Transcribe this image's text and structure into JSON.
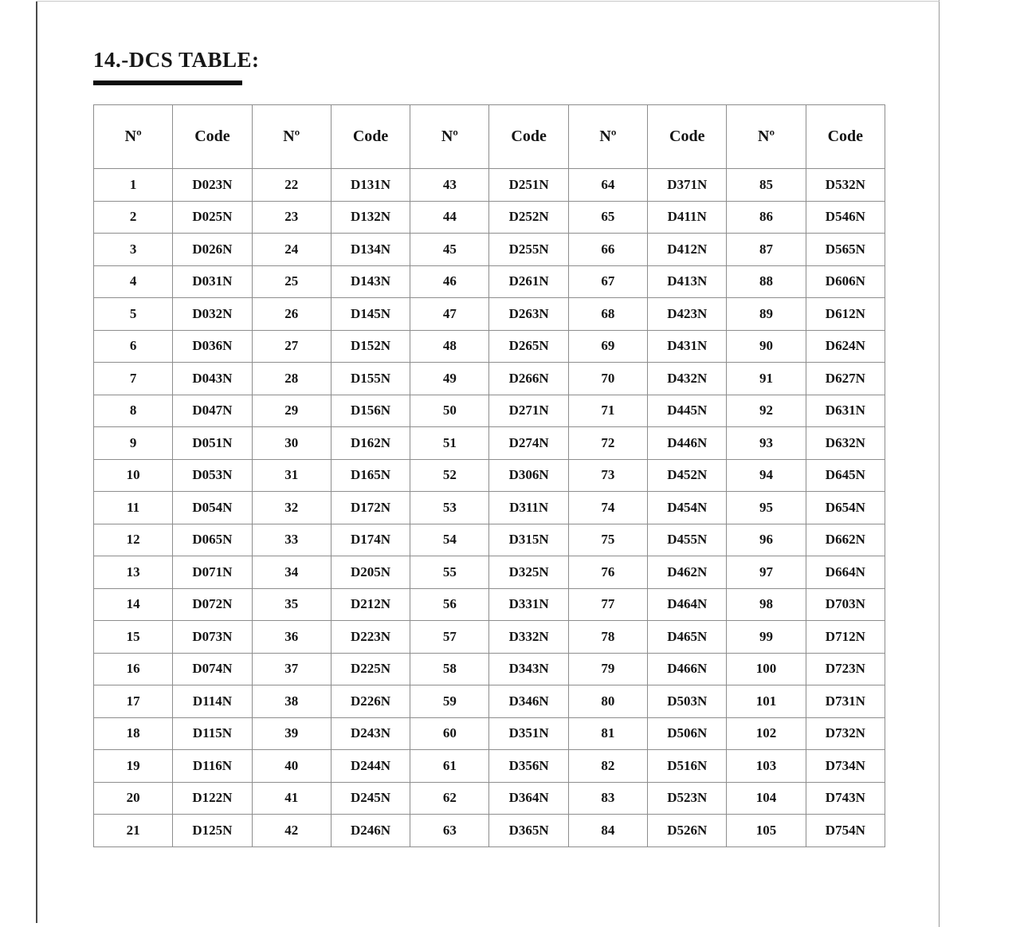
{
  "page": {
    "title": "14.-DCS TABLE:"
  },
  "colors": {
    "text": "#141414",
    "table_border": "#8d8d8d",
    "title_underline": "#0d0d0d",
    "page_border_left": "#4a4a4a",
    "page_border_right": "#9b9b9b"
  },
  "table": {
    "column_headers": [
      "Nº",
      "Code",
      "Nº",
      "Code",
      "Nº",
      "Code",
      "Nº",
      "Code",
      "Nº",
      "Code"
    ],
    "rows": [
      [
        "1",
        "D023N",
        "22",
        "D131N",
        "43",
        "D251N",
        "64",
        "D371N",
        "85",
        "D532N"
      ],
      [
        "2",
        "D025N",
        "23",
        "D132N",
        "44",
        "D252N",
        "65",
        "D411N",
        "86",
        "D546N"
      ],
      [
        "3",
        "D026N",
        "24",
        "D134N",
        "45",
        "D255N",
        "66",
        "D412N",
        "87",
        "D565N"
      ],
      [
        "4",
        "D031N",
        "25",
        "D143N",
        "46",
        "D261N",
        "67",
        "D413N",
        "88",
        "D606N"
      ],
      [
        "5",
        "D032N",
        "26",
        "D145N",
        "47",
        "D263N",
        "68",
        "D423N",
        "89",
        "D612N"
      ],
      [
        "6",
        "D036N",
        "27",
        "D152N",
        "48",
        "D265N",
        "69",
        "D431N",
        "90",
        "D624N"
      ],
      [
        "7",
        "D043N",
        "28",
        "D155N",
        "49",
        "D266N",
        "70",
        "D432N",
        "91",
        "D627N"
      ],
      [
        "8",
        "D047N",
        "29",
        "D156N",
        "50",
        "D271N",
        "71",
        "D445N",
        "92",
        "D631N"
      ],
      [
        "9",
        "D051N",
        "30",
        "D162N",
        "51",
        "D274N",
        "72",
        "D446N",
        "93",
        "D632N"
      ],
      [
        "10",
        "D053N",
        "31",
        "D165N",
        "52",
        "D306N",
        "73",
        "D452N",
        "94",
        "D645N"
      ],
      [
        "11",
        "D054N",
        "32",
        "D172N",
        "53",
        "D311N",
        "74",
        "D454N",
        "95",
        "D654N"
      ],
      [
        "12",
        "D065N",
        "33",
        "D174N",
        "54",
        "D315N",
        "75",
        "D455N",
        "96",
        "D662N"
      ],
      [
        "13",
        "D071N",
        "34",
        "D205N",
        "55",
        "D325N",
        "76",
        "D462N",
        "97",
        "D664N"
      ],
      [
        "14",
        "D072N",
        "35",
        "D212N",
        "56",
        "D331N",
        "77",
        "D464N",
        "98",
        "D703N"
      ],
      [
        "15",
        "D073N",
        "36",
        "D223N",
        "57",
        "D332N",
        "78",
        "D465N",
        "99",
        "D712N"
      ],
      [
        "16",
        "D074N",
        "37",
        "D225N",
        "58",
        "D343N",
        "79",
        "D466N",
        "100",
        "D723N"
      ],
      [
        "17",
        "D114N",
        "38",
        "D226N",
        "59",
        "D346N",
        "80",
        "D503N",
        "101",
        "D731N"
      ],
      [
        "18",
        "D115N",
        "39",
        "D243N",
        "60",
        "D351N",
        "81",
        "D506N",
        "102",
        "D732N"
      ],
      [
        "19",
        "D116N",
        "40",
        "D244N",
        "61",
        "D356N",
        "82",
        "D516N",
        "103",
        "D734N"
      ],
      [
        "20",
        "D122N",
        "41",
        "D245N",
        "62",
        "D364N",
        "83",
        "D523N",
        "104",
        "D743N"
      ],
      [
        "21",
        "D125N",
        "42",
        "D246N",
        "63",
        "D365N",
        "84",
        "D526N",
        "105",
        "D754N"
      ]
    ]
  }
}
